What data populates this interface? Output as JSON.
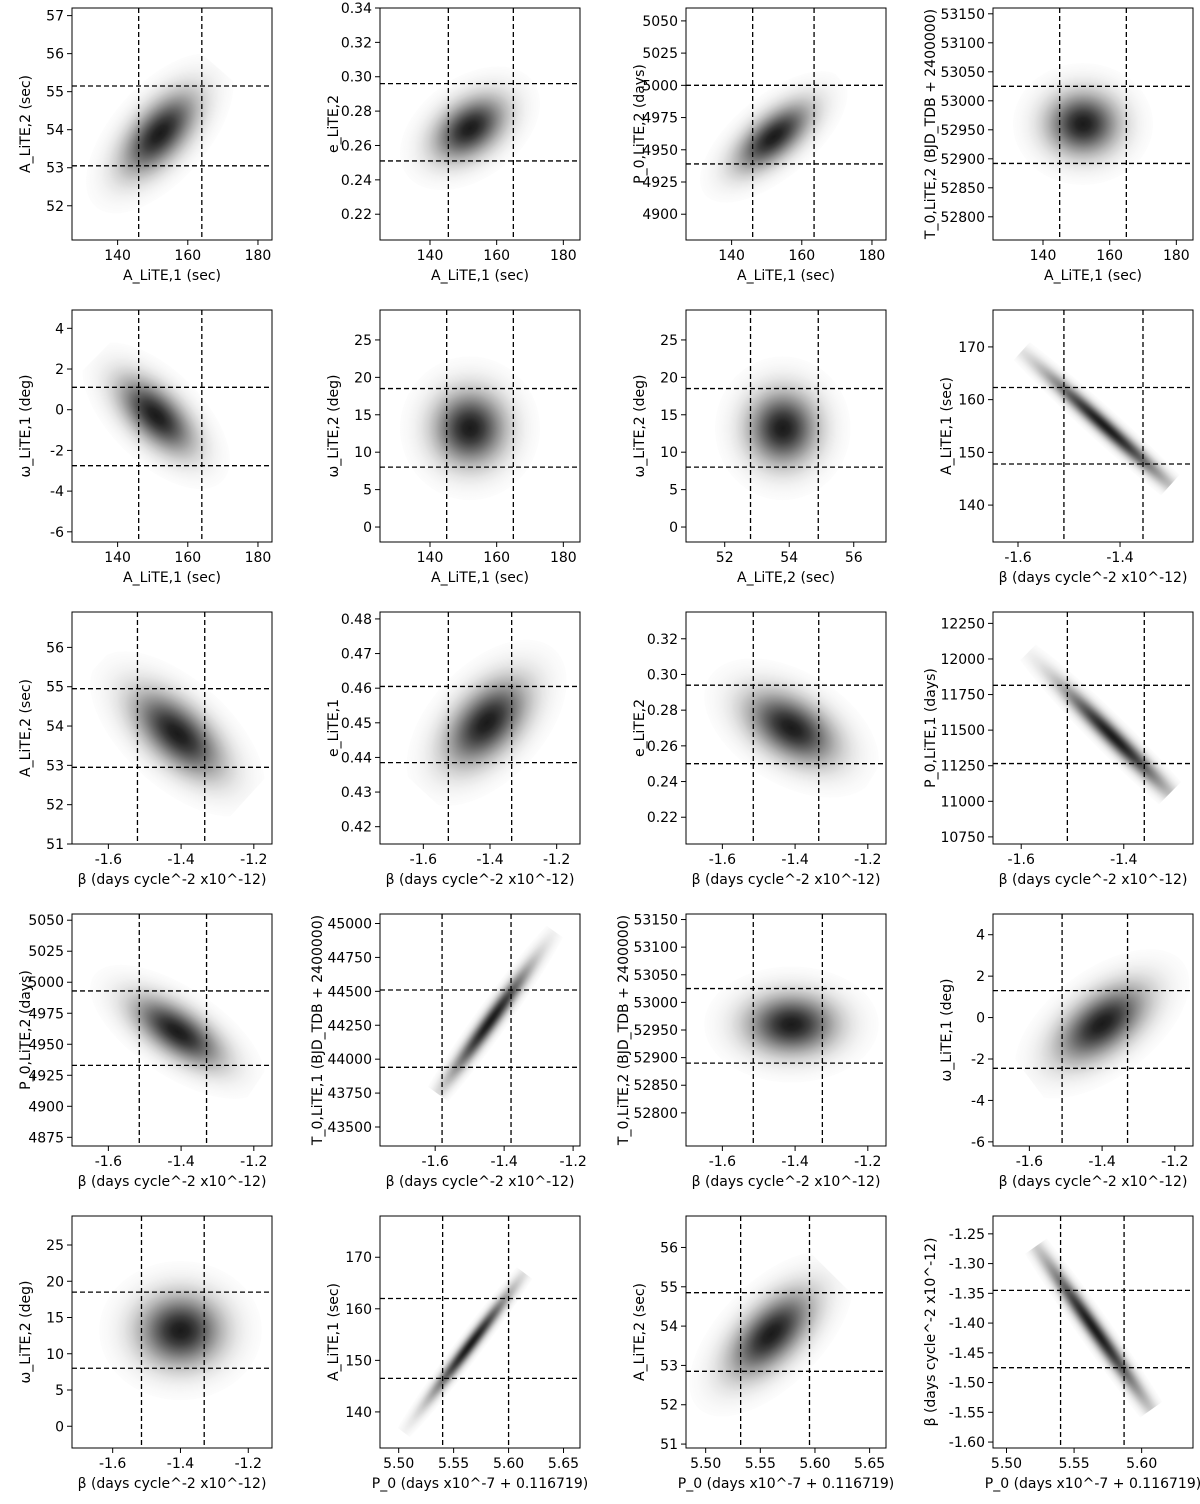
{
  "chart_data": [
    {
      "type": "density",
      "xlabel": "A_LiTE,1 (sec)",
      "ylabel": "A_LiTE,2 (sec)",
      "xlim": [
        127,
        184
      ],
      "xticks": [
        140,
        160,
        180
      ],
      "ylim": [
        51.1,
        57.2
      ],
      "yticks": [
        52,
        53,
        54,
        55,
        56,
        57
      ],
      "vlines": [
        146,
        164
      ],
      "hlines": [
        53.05,
        55.15
      ],
      "mean": [
        152,
        53.9
      ],
      "sd": [
        7,
        0.7
      ],
      "corr": 0.6
    },
    {
      "type": "density",
      "xlabel": "A_LiTE,1 (sec)",
      "ylabel": "e_LiTE,2",
      "xlim": [
        125,
        185
      ],
      "xticks": [
        140,
        160,
        180
      ],
      "ylim": [
        0.205,
        0.34
      ],
      "yticks": [
        0.22,
        0.24,
        0.26,
        0.28,
        {
          "value": 0.3,
          "label": "0.30"
        },
        0.32,
        0.34
      ],
      "vlines": [
        145.5,
        165
      ],
      "hlines": [
        0.251,
        0.296
      ],
      "mean": [
        152,
        0.27
      ],
      "sd": [
        7,
        0.012
      ],
      "corr": 0.4
    },
    {
      "type": "density",
      "xlabel": "A_LiTE,1 (sec)",
      "ylabel": "P_0,LiTE,2 (days)",
      "xlim": [
        127,
        184
      ],
      "xticks": [
        140,
        160,
        180
      ],
      "ylim": [
        4880,
        5060
      ],
      "yticks": [
        4900,
        4925,
        4950,
        4975,
        5000,
        5025,
        5050
      ],
      "vlines": [
        146,
        163.5
      ],
      "hlines": [
        4939,
        5000
      ],
      "mean": [
        152,
        4960
      ],
      "sd": [
        7,
        17
      ],
      "corr": 0.65
    },
    {
      "type": "density",
      "xlabel": "A_LiTE,1 (sec)",
      "ylabel": "T_0,LiTE,2 (BJD_TDB + 2400000)",
      "xlim": [
        125,
        185
      ],
      "xticks": [
        140,
        160,
        180
      ],
      "ylim": [
        52760,
        53160
      ],
      "yticks": [
        52800,
        52850,
        52900,
        52950,
        53000,
        53050,
        53100,
        53150
      ],
      "vlines": [
        145,
        165
      ],
      "hlines": [
        52892,
        53025
      ],
      "mean": [
        152,
        52960
      ],
      "sd": [
        7,
        35
      ],
      "corr": 0
    },
    {
      "type": "density",
      "xlabel": "A_LiTE,1 (sec)",
      "ylabel": "ω_LiTE,1 (deg)",
      "xlim": [
        127,
        184
      ],
      "xticks": [
        140,
        160,
        180
      ],
      "ylim": [
        -6.5,
        4.9
      ],
      "yticks": [
        -6,
        -4,
        -2,
        0,
        2,
        4
      ],
      "vlines": [
        146,
        164
      ],
      "hlines": [
        -2.75,
        1.1
      ],
      "mean": [
        151,
        -0.3
      ],
      "sd": [
        7,
        1.2
      ],
      "corr": -0.6
    },
    {
      "type": "density",
      "xlabel": "A_LiTE,1 (sec)",
      "ylabel": "ω_LiTE,2 (deg)",
      "xlim": [
        125,
        185
      ],
      "xticks": [
        140,
        160,
        180
      ],
      "ylim": [
        -2,
        29
      ],
      "yticks": [
        0,
        5,
        10,
        15,
        20,
        25
      ],
      "vlines": [
        145,
        165
      ],
      "hlines": [
        8,
        18.5
      ],
      "mean": [
        152,
        13.2
      ],
      "sd": [
        7,
        3.2
      ],
      "corr": 0
    },
    {
      "type": "density",
      "xlabel": "A_LiTE,2 (sec)",
      "ylabel": "ω_LiTE,2 (deg)",
      "xlim": [
        50.8,
        57
      ],
      "xticks": [
        52,
        54,
        56
      ],
      "ylim": [
        -2,
        29
      ],
      "yticks": [
        0,
        5,
        10,
        15,
        20,
        25
      ],
      "vlines": [
        52.8,
        54.9
      ],
      "hlines": [
        8,
        18.5
      ],
      "mean": [
        53.8,
        13.2
      ],
      "sd": [
        0.7,
        3.2
      ],
      "corr": 0
    },
    {
      "type": "density",
      "xlabel": "β (days cycle^-2 x10^-12)",
      "ylabel": "A_LiTE,1 (sec)",
      "xlim": [
        -1.649,
        -1.257
      ],
      "xticks": [
        -1.6,
        -1.4
      ],
      "ylim": [
        133,
        177
      ],
      "yticks": [
        140,
        150,
        160,
        170
      ],
      "vlines": [
        -1.51,
        -1.355
      ],
      "hlines": [
        147.8,
        162.3
      ],
      "mean": [
        -1.43,
        155
      ],
      "sd": [
        0.08,
        7
      ],
      "corr": -0.98
    },
    {
      "type": "density",
      "xlabel": "β (days cycle^-2 x10^-12)",
      "ylabel": "A_LiTE,2 (sec)",
      "xlim": [
        -1.7,
        -1.15
      ],
      "xticks": [
        -1.6,
        -1.4,
        -1.2
      ],
      "ylim": [
        51,
        56.9
      ],
      "yticks": [
        51,
        52,
        53,
        54,
        55,
        56
      ],
      "vlines": [
        -1.52,
        -1.335
      ],
      "hlines": [
        52.95,
        54.95
      ],
      "mean": [
        -1.41,
        53.8
      ],
      "sd": [
        0.08,
        0.7
      ],
      "corr": -0.6
    },
    {
      "type": "density",
      "xlabel": "β (days cycle^-2 x10^-12)",
      "ylabel": "e_LiTE,1",
      "xlim": [
        -1.73,
        -1.13
      ],
      "xticks": [
        -1.6,
        -1.4,
        -1.2
      ],
      "ylim": [
        0.415,
        0.482
      ],
      "yticks": [
        0.42,
        0.43,
        0.44,
        0.45,
        0.46,
        0.47,
        0.48
      ],
      "vlines": [
        -1.525,
        -1.335
      ],
      "hlines": [
        0.4385,
        0.4605
      ],
      "mean": [
        -1.41,
        0.45
      ],
      "sd": [
        0.08,
        0.008
      ],
      "corr": 0.5
    },
    {
      "type": "density",
      "xlabel": "β (days cycle^-2 x10^-12)",
      "ylabel": "e_LiTE,2",
      "xlim": [
        -1.7,
        -1.15
      ],
      "xticks": [
        -1.6,
        -1.4,
        -1.2
      ],
      "ylim": [
        0.205,
        0.335
      ],
      "yticks": [
        0.22,
        0.24,
        0.26,
        0.28,
        {
          "value": 0.3,
          "label": "0.30"
        },
        0.32
      ],
      "vlines": [
        -1.515,
        -1.335
      ],
      "hlines": [
        0.25,
        0.294
      ],
      "mean": [
        -1.41,
        0.27
      ],
      "sd": [
        0.08,
        0.013
      ],
      "corr": -0.45
    },
    {
      "type": "density",
      "xlabel": "β (days cycle^-2 x10^-12)",
      "ylabel": "P_0,LiTE,1 (days)",
      "xlim": [
        -1.655,
        -1.265
      ],
      "xticks": [
        -1.6,
        -1.4
      ],
      "ylim": [
        10700,
        12330
      ],
      "yticks": [
        10750,
        11000,
        11250,
        11500,
        11750,
        12000,
        12250
      ],
      "vlines": [
        -1.51,
        -1.36
      ],
      "hlines": [
        11265,
        11815
      ],
      "mean": [
        -1.42,
        11450
      ],
      "sd": [
        0.07,
        250
      ],
      "corr": -0.97
    },
    {
      "type": "density",
      "xlabel": "β (days cycle^-2 x10^-12)",
      "ylabel": "P_0,LiTE,2 (days)",
      "xlim": [
        -1.7,
        -1.15
      ],
      "xticks": [
        -1.6,
        -1.4,
        -1.2
      ],
      "ylim": [
        4868,
        5055
      ],
      "yticks": [
        4875,
        4900,
        4925,
        4950,
        4975,
        5000,
        5025,
        5050
      ],
      "vlines": [
        -1.515,
        -1.33
      ],
      "hlines": [
        4933,
        4993
      ],
      "mean": [
        -1.41,
        4960
      ],
      "sd": [
        0.08,
        18
      ],
      "corr": -0.65
    },
    {
      "type": "density",
      "xlabel": "β (days cycle^-2 x10^-12)",
      "ylabel": "T_0,LiTE,1 (BJD_TDB + 2400000)",
      "xlim": [
        -1.76,
        -1.18
      ],
      "xticks": [
        -1.6,
        -1.4,
        -1.2
      ],
      "ylim": [
        43360,
        45070
      ],
      "yticks": [
        43500,
        43750,
        44000,
        44250,
        44500,
        44750,
        45000
      ],
      "vlines": [
        -1.58,
        -1.38
      ],
      "hlines": [
        43940,
        44510
      ],
      "mean": [
        -1.44,
        44280
      ],
      "sd": [
        0.08,
        280
      ],
      "corr": 0.97
    },
    {
      "type": "density",
      "xlabel": "β (days cycle^-2 x10^-12)",
      "ylabel": "T_0,LiTE,2 (BJD_TDB + 2400000)",
      "xlim": [
        -1.7,
        -1.15
      ],
      "xticks": [
        -1.6,
        -1.4,
        -1.2
      ],
      "ylim": [
        52740,
        53160
      ],
      "yticks": [
        52800,
        52850,
        52900,
        52950,
        53000,
        53050,
        53100,
        53150
      ],
      "vlines": [
        -1.515,
        -1.325
      ],
      "hlines": [
        52890,
        53025
      ],
      "mean": [
        -1.41,
        52960
      ],
      "sd": [
        0.08,
        35
      ],
      "corr": 0
    },
    {
      "type": "density",
      "xlabel": "β (days cycle^-2 x10^-12)",
      "ylabel": "ω_LiTE,1 (deg)",
      "xlim": [
        -1.7,
        -1.15
      ],
      "xticks": [
        -1.6,
        -1.4,
        -1.2
      ],
      "ylim": [
        -6.2,
        5
      ],
      "yticks": [
        -6,
        -4,
        -2,
        0,
        2,
        4
      ],
      "vlines": [
        -1.51,
        -1.33
      ],
      "hlines": [
        -2.45,
        1.3
      ],
      "mean": [
        -1.4,
        -0.3
      ],
      "sd": [
        0.08,
        1.2
      ],
      "corr": 0.55
    },
    {
      "type": "density",
      "xlabel": "β (days cycle^-2 x10^-12)",
      "ylabel": "ω_LiTE,2 (deg)",
      "xlim": [
        -1.72,
        -1.13
      ],
      "xticks": [
        -1.6,
        -1.4,
        -1.2
      ],
      "ylim": [
        -3,
        29
      ],
      "yticks": [
        0,
        5,
        10,
        15,
        20,
        25
      ],
      "vlines": [
        -1.515,
        -1.33
      ],
      "hlines": [
        8,
        18.5
      ],
      "mean": [
        -1.4,
        13.2
      ],
      "sd": [
        0.08,
        3.2
      ],
      "corr": 0
    },
    {
      "type": "density",
      "xlabel": "P_0 (days x10^-7 + 0.116719)",
      "ylabel": "A_LiTE,1 (sec)",
      "xlim": [
        5.483,
        5.665
      ],
      "xticks": [
        {
          "value": 5.5,
          "label": "5.50"
        },
        5.55,
        {
          "value": 5.6,
          "label": "5.60"
        },
        5.65
      ],
      "ylim": [
        133,
        178
      ],
      "yticks": [
        140,
        150,
        160,
        170
      ],
      "vlines": [
        5.54,
        5.6
      ],
      "hlines": [
        146.5,
        162
      ],
      "mean": [
        5.565,
        153
      ],
      "sd": [
        0.025,
        7
      ],
      "corr": 0.98
    },
    {
      "type": "density",
      "xlabel": "P_0 (days x10^-7 + 0.116719)",
      "ylabel": "A_LiTE,2 (sec)",
      "xlim": [
        5.482,
        5.665
      ],
      "xticks": [
        {
          "value": 5.5,
          "label": "5.50"
        },
        5.55,
        {
          "value": 5.6,
          "label": "5.60"
        },
        5.65
      ],
      "ylim": [
        50.9,
        56.8
      ],
      "yticks": [
        51,
        52,
        53,
        54,
        55,
        56
      ],
      "vlines": [
        5.532,
        5.595
      ],
      "hlines": [
        52.85,
        54.85
      ],
      "mean": [
        5.56,
        53.8
      ],
      "sd": [
        0.025,
        0.7
      ],
      "corr": 0.6
    },
    {
      "type": "density",
      "xlabel": "P_0 (days x10^-7 + 0.116719)",
      "ylabel": "β (days cycle^-2 x10^-12)",
      "xlim": [
        5.49,
        5.638
      ],
      "xticks": [
        {
          "value": 5.5,
          "label": "5.50"
        },
        5.55,
        {
          "value": 5.6,
          "label": "5.60"
        }
      ],
      "ylim": [
        -1.61,
        -1.22
      ],
      "yticks": [
        -1.25,
        {
          "value": -1.3,
          "label": "-1.30"
        },
        -1.35,
        {
          "value": -1.4,
          "label": "-1.40"
        },
        -1.45,
        {
          "value": -1.5,
          "label": "-1.50"
        },
        -1.55,
        {
          "value": -1.6,
          "label": "-1.60"
        }
      ],
      "vlines": [
        5.54,
        5.587
      ],
      "hlines": [
        -1.345,
        -1.475
      ],
      "mean": [
        5.565,
        -1.41
      ],
      "sd": [
        0.025,
        0.08
      ],
      "corr": -0.98
    }
  ]
}
